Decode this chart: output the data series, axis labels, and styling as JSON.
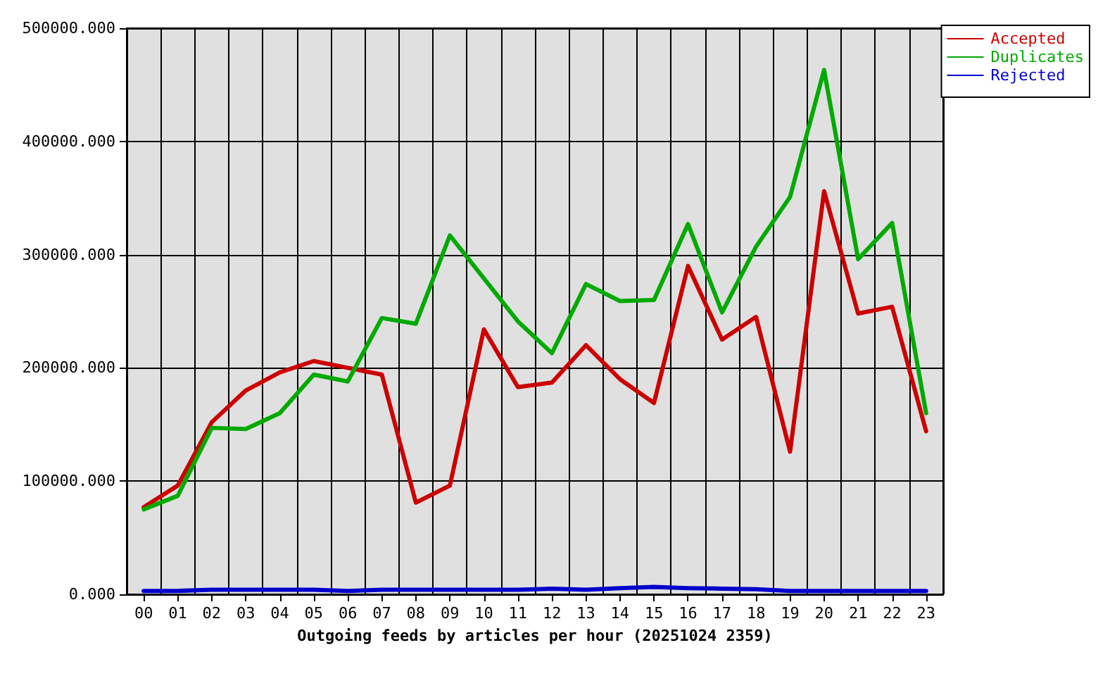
{
  "chart_data": {
    "type": "line",
    "xlabel": "Outgoing feeds by articles per hour (20251024 2359)",
    "categories": [
      "00",
      "01",
      "02",
      "03",
      "04",
      "05",
      "06",
      "07",
      "08",
      "09",
      "10",
      "11",
      "12",
      "13",
      "14",
      "15",
      "16",
      "17",
      "18",
      "19",
      "20",
      "21",
      "22",
      "23"
    ],
    "series": [
      {
        "name": "Accepted",
        "color": "#cc0000",
        "values": [
          77000,
          96000,
          152000,
          180000,
          196000,
          206000,
          200000,
          194000,
          81000,
          96000,
          234000,
          183000,
          187000,
          220000,
          190000,
          169000,
          290000,
          225000,
          245000,
          126000,
          356000,
          248000,
          254000,
          144000
        ]
      },
      {
        "name": "Duplicates",
        "color": "#00aa00",
        "values": [
          75000,
          87000,
          147000,
          146000,
          160000,
          194000,
          188000,
          244000,
          239000,
          317000,
          279000,
          241000,
          213000,
          274000,
          259000,
          260000,
          327000,
          249000,
          307000,
          351000,
          463000,
          296000,
          328000,
          160000
        ]
      },
      {
        "name": "Rejected",
        "color": "#0000cc",
        "values": [
          3000,
          3000,
          4000,
          4000,
          4000,
          4000,
          3000,
          4000,
          4000,
          4000,
          4000,
          4000,
          5000,
          4000,
          5500,
          6500,
          5500,
          5000,
          4500,
          3000,
          3000,
          3000,
          3000,
          3000
        ]
      }
    ],
    "ylim": [
      0,
      500000
    ],
    "yticks": [
      {
        "value": 0,
        "label": "0.000"
      },
      {
        "value": 100000,
        "label": "100000.000"
      },
      {
        "value": 200000,
        "label": "200000.000"
      },
      {
        "value": 300000,
        "label": "300000.000"
      },
      {
        "value": 400000,
        "label": "400000.000"
      },
      {
        "value": 500000,
        "label": "500000.000"
      }
    ],
    "grid": true,
    "legend": "top right",
    "marker": "none",
    "line_style": "solid"
  }
}
